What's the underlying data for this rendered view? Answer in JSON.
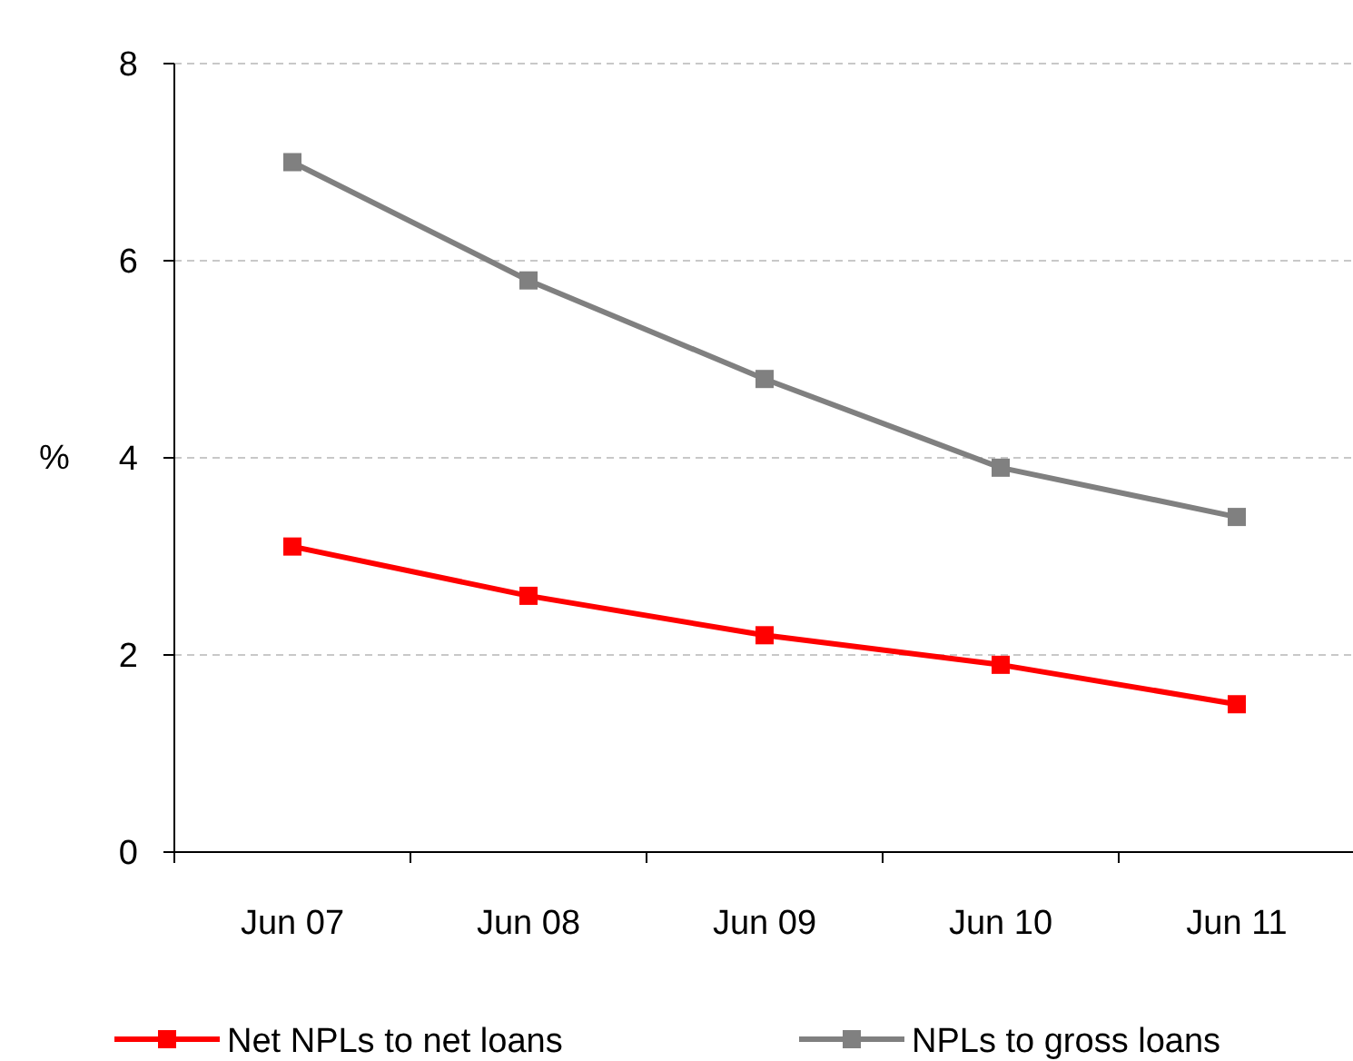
{
  "chart_data": {
    "type": "line",
    "ylabel": "%",
    "categories": [
      "Jun 07",
      "Jun 08",
      "Jun 09",
      "Jun 10",
      "Jun 11"
    ],
    "series": [
      {
        "name": "Net NPLs to net loans",
        "color": "#ff0000",
        "values": [
          3.1,
          2.6,
          2.2,
          1.9,
          1.5
        ]
      },
      {
        "name": "NPLs to gross loans",
        "color": "#808080",
        "values": [
          7.0,
          5.8,
          4.8,
          3.9,
          3.4
        ]
      }
    ],
    "ylim": [
      0,
      8
    ],
    "yticks": [
      0,
      2,
      4,
      6,
      8
    ],
    "grid": "y",
    "legend": "bottom",
    "marker": "square",
    "line_style": "solid"
  }
}
